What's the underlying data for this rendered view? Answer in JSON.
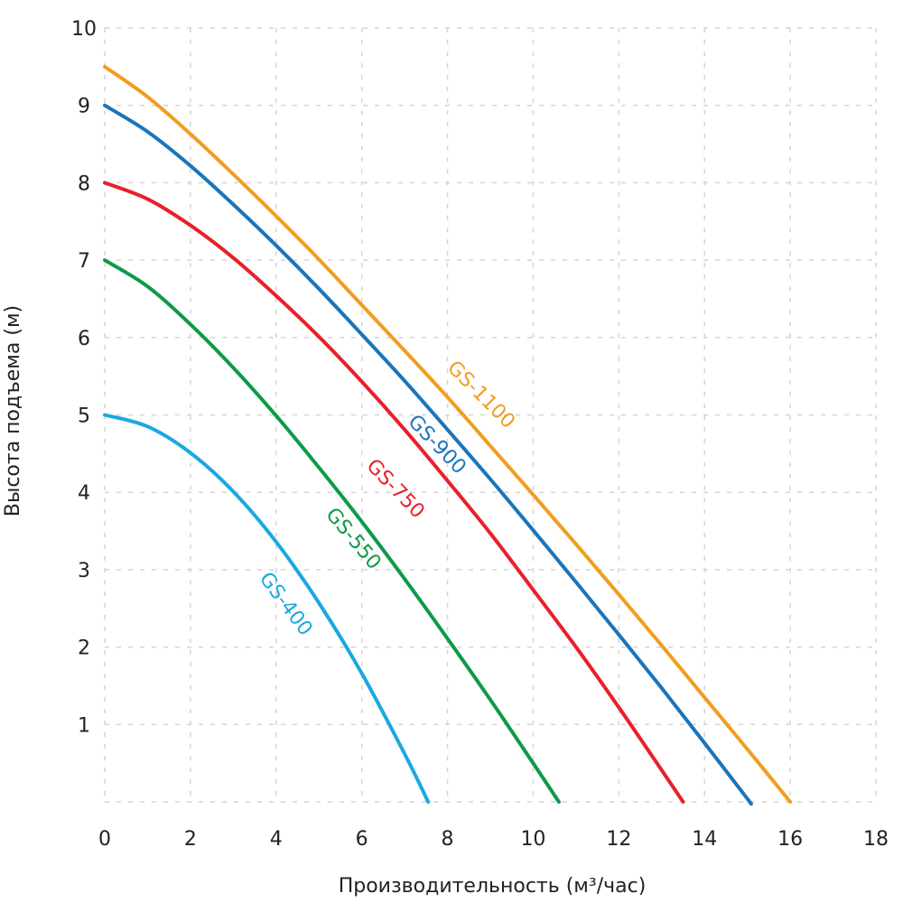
{
  "chart_data": {
    "type": "line",
    "title": "",
    "xlabel": "Производительность (м³/час)",
    "ylabel": "Высота подъема (м)",
    "xlim": [
      0,
      18
    ],
    "ylim": [
      0,
      10
    ],
    "xticks": [
      "0",
      "2",
      "4",
      "6",
      "8",
      "10",
      "12",
      "14",
      "16",
      "18"
    ],
    "yticks": [
      "1",
      "2",
      "3",
      "4",
      "5",
      "6",
      "7",
      "8",
      "9",
      "10"
    ],
    "grid": true,
    "grid_style": "dashed",
    "series": [
      {
        "name": "GS-400",
        "color": "#1ba8e0",
        "x": [
          0,
          1,
          2,
          3,
          4,
          5,
          6,
          7,
          7.55
        ],
        "y": [
          5,
          4.85,
          4.51,
          4.01,
          3.36,
          2.57,
          1.66,
          0.62,
          0
        ]
      },
      {
        "name": "GS-550",
        "color": "#0e9a48",
        "x": [
          0,
          1,
          2,
          3,
          4,
          5,
          6,
          7,
          8,
          9,
          10,
          10.6
        ],
        "y": [
          7,
          6.66,
          6.17,
          5.61,
          4.99,
          4.32,
          3.62,
          2.88,
          2.11,
          1.32,
          0.5,
          0
        ]
      },
      {
        "name": "GS-750",
        "color": "#e8202a",
        "x": [
          0,
          1,
          2,
          3,
          4,
          5,
          6,
          7,
          8,
          9,
          10,
          11,
          12,
          13,
          13.5
        ],
        "y": [
          8,
          7.79,
          7.45,
          7.03,
          6.54,
          6.01,
          5.43,
          4.81,
          4.15,
          3.47,
          2.74,
          2.0,
          1.22,
          0.41,
          0
        ]
      },
      {
        "name": "GS-900",
        "color": "#1a75bb",
        "x": [
          0,
          1,
          2,
          3,
          4,
          5,
          6,
          7,
          8,
          9,
          10,
          11,
          12,
          13,
          14,
          15,
          15.05
        ],
        "y": [
          9,
          8.66,
          8.22,
          7.72,
          7.19,
          6.63,
          6.04,
          5.44,
          4.81,
          4.17,
          3.51,
          2.84,
          2.16,
          1.47,
          0.76,
          0.04,
          0
        ]
      },
      {
        "name": "GS-1100",
        "color": "#f29d1f",
        "x": [
          0,
          1,
          2,
          3,
          4,
          5,
          6,
          7,
          8,
          9,
          10,
          11,
          12,
          13,
          14,
          15,
          16
        ],
        "y": [
          9.5,
          9.11,
          8.63,
          8.11,
          7.57,
          7.01,
          6.42,
          5.83,
          5.23,
          4.6,
          3.97,
          3.33,
          2.68,
          2.02,
          1.35,
          0.68,
          0
        ]
      }
    ]
  }
}
